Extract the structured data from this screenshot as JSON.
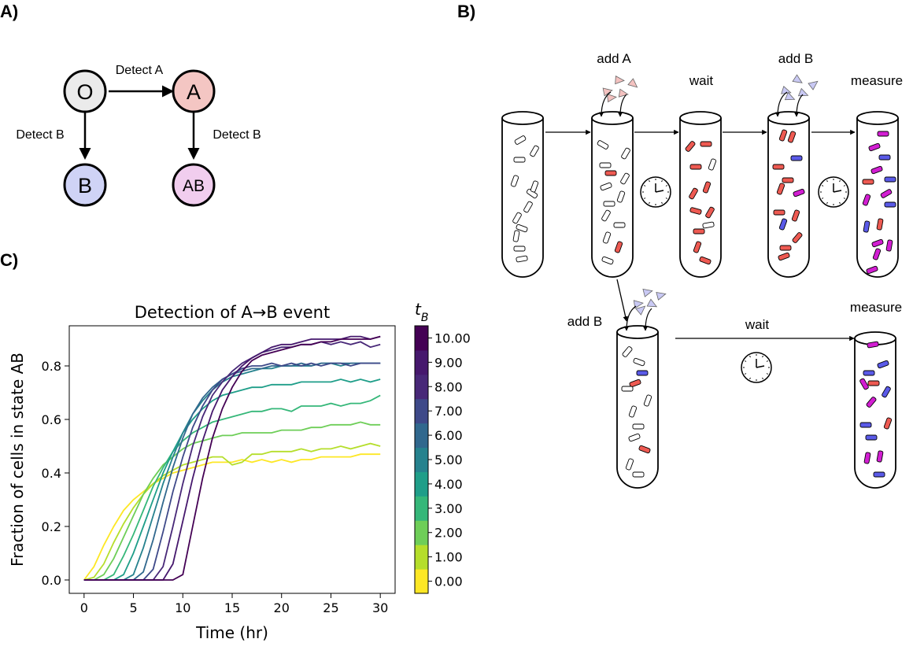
{
  "panels": {
    "a": "A)",
    "b": "B)",
    "c": "C)"
  },
  "state_graph": {
    "nodes": {
      "o": "O",
      "a": "A",
      "b": "B",
      "ab": "AB"
    },
    "edges": {
      "o_a": "Detect A",
      "o_b": "Detect B",
      "a_ab": "Detect B"
    },
    "colors": {
      "o": "#ebebeb",
      "a": "#f4c6c3",
      "b": "#cfd3f6",
      "ab": "#f1cdee"
    }
  },
  "protocol": {
    "top_labels": {
      "add_a": "add A",
      "wait1": "wait",
      "add_b": "add B",
      "measure1": "measure"
    },
    "bottom_labels": {
      "add_b": "add B",
      "wait": "wait",
      "measure": "measure"
    },
    "colors": {
      "gray_cell": "#ffffff",
      "red_cell": "#ee5a52",
      "blue_cell": "#5a5ae8",
      "magenta_cell": "#d21ed2",
      "inducer_a": "#f4c2c0",
      "inducer_b": "#c9c9f4"
    }
  },
  "chart_data": {
    "type": "line",
    "title": "Detection of A→B event",
    "xlabel": "Time (hr)",
    "ylabel": "Fraction of cells in state AB",
    "xlim": [
      -1.5,
      31.5
    ],
    "ylim": [
      -0.05,
      0.95
    ],
    "xticks": [
      0,
      5,
      10,
      15,
      20,
      25,
      30
    ],
    "yticks": [
      0.0,
      0.2,
      0.4,
      0.6,
      0.8
    ],
    "grid": false,
    "colorbar": {
      "label": "tB",
      "ticks": [
        "0.00",
        "1.00",
        "2.00",
        "3.00",
        "4.00",
        "5.00",
        "6.00",
        "7.00",
        "8.00",
        "9.00",
        "10.00"
      ]
    },
    "x": [
      0,
      1,
      2,
      3,
      4,
      5,
      6,
      7,
      8,
      9,
      10,
      11,
      12,
      13,
      14,
      15,
      16,
      17,
      18,
      19,
      20,
      21,
      22,
      23,
      24,
      25,
      26,
      27,
      28,
      29,
      30
    ],
    "series": [
      {
        "tB": 0,
        "color": "#fde725",
        "values": [
          0.0,
          0.05,
          0.13,
          0.2,
          0.26,
          0.3,
          0.33,
          0.36,
          0.38,
          0.4,
          0.41,
          0.42,
          0.43,
          0.44,
          0.44,
          0.44,
          0.45,
          0.44,
          0.45,
          0.44,
          0.45,
          0.44,
          0.45,
          0.45,
          0.46,
          0.46,
          0.46,
          0.46,
          0.47,
          0.47,
          0.47
        ]
      },
      {
        "tB": 1,
        "color": "#b5de2b",
        "values": [
          0.0,
          0.01,
          0.06,
          0.14,
          0.21,
          0.27,
          0.32,
          0.36,
          0.39,
          0.41,
          0.43,
          0.44,
          0.45,
          0.46,
          0.46,
          0.43,
          0.44,
          0.47,
          0.47,
          0.48,
          0.48,
          0.48,
          0.49,
          0.48,
          0.49,
          0.49,
          0.5,
          0.49,
          0.5,
          0.51,
          0.5
        ]
      },
      {
        "tB": 2,
        "color": "#6ece58",
        "values": [
          0.0,
          0.0,
          0.02,
          0.08,
          0.16,
          0.24,
          0.32,
          0.38,
          0.43,
          0.46,
          0.49,
          0.51,
          0.52,
          0.53,
          0.54,
          0.54,
          0.55,
          0.55,
          0.55,
          0.55,
          0.56,
          0.56,
          0.56,
          0.57,
          0.57,
          0.58,
          0.58,
          0.58,
          0.59,
          0.58,
          0.58
        ]
      },
      {
        "tB": 3,
        "color": "#35b779",
        "values": [
          0.0,
          0.0,
          0.0,
          0.02,
          0.09,
          0.17,
          0.26,
          0.35,
          0.42,
          0.48,
          0.52,
          0.55,
          0.57,
          0.59,
          0.6,
          0.61,
          0.62,
          0.63,
          0.63,
          0.64,
          0.64,
          0.63,
          0.65,
          0.65,
          0.65,
          0.66,
          0.65,
          0.66,
          0.66,
          0.67,
          0.69
        ]
      },
      {
        "tB": 4,
        "color": "#1f9e89",
        "values": [
          0.0,
          0.0,
          0.0,
          0.0,
          0.02,
          0.1,
          0.2,
          0.3,
          0.4,
          0.48,
          0.55,
          0.6,
          0.64,
          0.67,
          0.69,
          0.7,
          0.71,
          0.72,
          0.72,
          0.73,
          0.73,
          0.73,
          0.74,
          0.74,
          0.74,
          0.74,
          0.75,
          0.74,
          0.75,
          0.74,
          0.75
        ]
      },
      {
        "tB": 5,
        "color": "#26828e",
        "values": [
          0.0,
          0.0,
          0.0,
          0.0,
          0.0,
          0.02,
          0.12,
          0.24,
          0.36,
          0.46,
          0.55,
          0.62,
          0.67,
          0.71,
          0.74,
          0.76,
          0.77,
          0.78,
          0.79,
          0.79,
          0.8,
          0.8,
          0.8,
          0.8,
          0.81,
          0.81,
          0.8,
          0.81,
          0.81,
          0.81,
          0.81
        ]
      },
      {
        "tB": 6,
        "color": "#31688e",
        "values": [
          0.0,
          0.0,
          0.0,
          0.0,
          0.0,
          0.0,
          0.03,
          0.15,
          0.29,
          0.42,
          0.53,
          0.62,
          0.68,
          0.72,
          0.75,
          0.77,
          0.78,
          0.79,
          0.79,
          0.8,
          0.8,
          0.8,
          0.81,
          0.8,
          0.81,
          0.81,
          0.81,
          0.81,
          0.81,
          0.81,
          0.81
        ]
      },
      {
        "tB": 7,
        "color": "#3e4989",
        "values": [
          0.0,
          0.0,
          0.0,
          0.0,
          0.0,
          0.0,
          0.0,
          0.04,
          0.18,
          0.33,
          0.46,
          0.57,
          0.65,
          0.71,
          0.75,
          0.77,
          0.79,
          0.8,
          0.8,
          0.81,
          0.8,
          0.81,
          0.8,
          0.81,
          0.8,
          0.81,
          0.81,
          0.8,
          0.81,
          0.81,
          0.81
        ]
      },
      {
        "tB": 8,
        "color": "#482878",
        "values": [
          0.0,
          0.0,
          0.0,
          0.0,
          0.0,
          0.0,
          0.0,
          0.0,
          0.05,
          0.2,
          0.36,
          0.5,
          0.61,
          0.69,
          0.74,
          0.78,
          0.81,
          0.83,
          0.85,
          0.86,
          0.87,
          0.87,
          0.88,
          0.88,
          0.89,
          0.88,
          0.89,
          0.88,
          0.89,
          0.87,
          0.88
        ]
      },
      {
        "tB": 9,
        "color": "#46186d",
        "values": [
          0.0,
          0.0,
          0.0,
          0.0,
          0.0,
          0.0,
          0.0,
          0.0,
          0.0,
          0.06,
          0.22,
          0.38,
          0.52,
          0.63,
          0.71,
          0.76,
          0.8,
          0.83,
          0.85,
          0.87,
          0.88,
          0.88,
          0.89,
          0.9,
          0.9,
          0.9,
          0.9,
          0.91,
          0.91,
          0.9,
          0.91
        ]
      },
      {
        "tB": 10,
        "color": "#440154",
        "values": [
          0.0,
          0.0,
          0.0,
          0.0,
          0.0,
          0.0,
          0.0,
          0.0,
          0.0,
          0.0,
          0.02,
          0.2,
          0.38,
          0.53,
          0.64,
          0.72,
          0.78,
          0.82,
          0.84,
          0.85,
          0.86,
          0.87,
          0.88,
          0.88,
          0.89,
          0.89,
          0.9,
          0.9,
          0.9,
          0.9,
          0.91
        ]
      }
    ]
  }
}
